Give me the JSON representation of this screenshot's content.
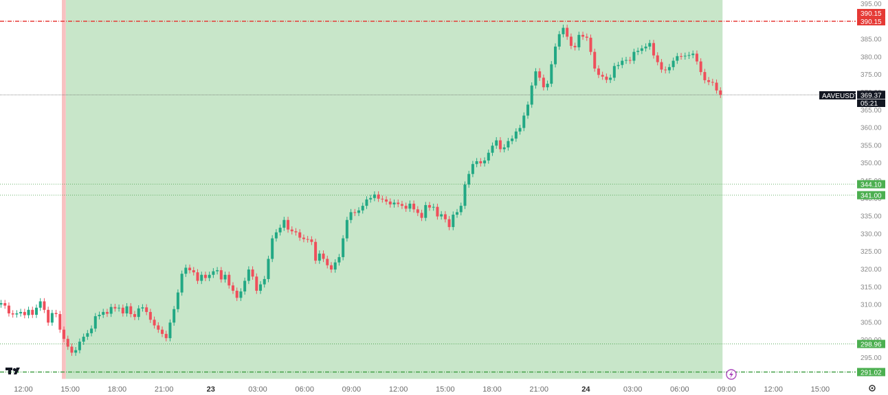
{
  "symbol": "AAVEUSDT",
  "countdown": "05:21",
  "colors": {
    "up": "#22a884",
    "down": "#ef4f5b",
    "profit_zone": "#c8e6c9",
    "stop_zone": "#f8c1c1",
    "price_tag": "#131722",
    "target_line": "#e53935",
    "support_line": "#43a047",
    "support_tag": "#4caf50"
  },
  "chart_data": {
    "type": "candlestick",
    "title": "",
    "xlabel": "",
    "ylabel": "",
    "ylim": [
      291.5,
      395.5
    ],
    "yticks": [
      "395.00",
      "390.00",
      "385.00",
      "380.00",
      "375.00",
      "370.00",
      "365.00",
      "360.00",
      "355.00",
      "350.00",
      "345.00",
      "340.00",
      "335.00",
      "330.00",
      "325.00",
      "320.00",
      "315.00",
      "310.00",
      "305.00",
      "300.00",
      "295.00"
    ],
    "x_ticks": [
      "12:00",
      "15:00",
      "18:00",
      "21:00",
      "23",
      "03:00",
      "06:00",
      "09:00",
      "12:00",
      "15:00",
      "18:00",
      "21:00",
      "24",
      "03:00",
      "06:00",
      "09:00",
      "12:00",
      "15:00"
    ],
    "x_ticks_bold": [
      "23",
      "24"
    ],
    "candle_interval": "30m",
    "last_price": 369.37,
    "horizontal_lines": [
      {
        "price": 390.15,
        "label": "390.15",
        "style": "dash-dot",
        "color": "red"
      },
      {
        "price": 369.37,
        "label": "369.37",
        "style": "dotted",
        "color": "gray"
      },
      {
        "price": 344.1,
        "label": "344.10",
        "style": "dotted",
        "color": "green"
      },
      {
        "price": 341.0,
        "label": "341.00",
        "style": "dotted",
        "color": "green"
      },
      {
        "price": 298.96,
        "label": "298.96",
        "style": "dotted",
        "color": "green"
      },
      {
        "price": 291.02,
        "label": "291.02",
        "style": "dash-dot",
        "color": "green"
      }
    ],
    "position_zone": {
      "entry_price": 291.02,
      "target_price": 390.15,
      "stop_band_candles": 1
    },
    "closes": [
      310.5,
      309.8,
      307.6,
      307.3,
      307.6,
      308.0,
      307.1,
      308.6,
      307.2,
      309.2,
      311.0,
      308.6,
      305.0,
      307.7,
      307.4,
      303.0,
      300.4,
      298.2,
      296.5,
      297.2,
      299.6,
      301.0,
      302.0,
      303.3,
      306.8,
      307.2,
      308.0,
      307.5,
      309.4,
      309.0,
      309.2,
      307.6,
      309.6,
      307.4,
      306.6,
      309.0,
      309.3,
      308.0,
      305.8,
      304.2,
      303.0,
      301.8,
      300.6,
      305.0,
      308.8,
      313.5,
      318.8,
      320.5,
      319.8,
      319.2,
      316.8,
      318.5,
      317.6,
      318.5,
      319.5,
      319.8,
      317.2,
      318.5,
      315.5,
      314.0,
      312.0,
      313.8,
      316.8,
      320.0,
      318.0,
      314.0,
      315.8,
      317.3,
      323.0,
      328.8,
      330.5,
      331.8,
      334.0,
      331.3,
      330.8,
      330.5,
      329.0,
      328.6,
      328.5,
      327.8,
      322.5,
      324.5,
      323.0,
      321.2,
      320.0,
      322.0,
      323.5,
      328.8,
      334.0,
      336.2,
      336.0,
      336.7,
      338.0,
      339.8,
      340.2,
      341.2,
      340.0,
      339.8,
      339.2,
      338.4,
      338.9,
      338.5,
      338.0,
      337.2,
      338.6,
      337.0,
      336.0,
      334.6,
      338.2,
      337.5,
      337.7,
      335.0,
      335.6,
      334.2,
      332.0,
      335.5,
      336.2,
      338.0,
      344.0,
      347.0,
      349.8,
      350.6,
      350.0,
      350.8,
      353.0,
      355.0,
      356.5,
      354.0,
      354.5,
      356.3,
      357.0,
      359.0,
      360.0,
      363.5,
      366.6,
      372.0,
      376.0,
      374.2,
      371.5,
      372.5,
      378.0,
      383.0,
      386.5,
      388.3,
      385.8,
      383.2,
      382.8,
      386.3,
      385.8,
      385.5,
      381.5,
      376.8,
      375.0,
      374.5,
      373.6,
      374.2,
      377.5,
      377.8,
      379.0,
      379.2,
      379.0,
      381.5,
      381.8,
      382.5,
      383.0,
      384.0,
      380.5,
      378.6,
      376.5,
      376.3,
      377.2,
      379.0,
      380.3,
      380.2,
      380.4,
      380.6,
      381.0,
      378.8,
      375.8,
      373.5,
      373.0,
      372.8,
      370.6,
      369.37
    ]
  }
}
